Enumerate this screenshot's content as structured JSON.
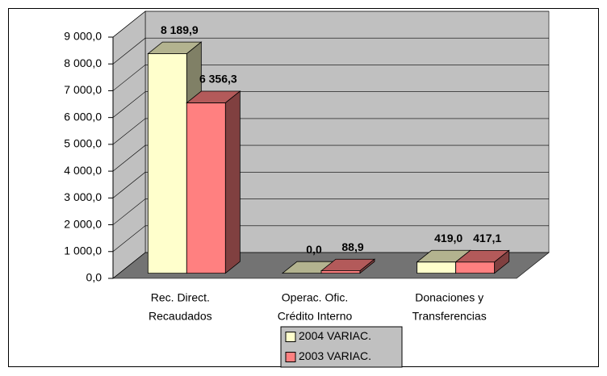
{
  "chart_data": {
    "type": "bar3d",
    "categories": [
      [
        "Rec. Direct.",
        "Recaudados"
      ],
      [
        "Operac. Ofic.",
        "Crédito Interno"
      ],
      [
        "Donaciones y",
        "Transferencias"
      ]
    ],
    "series": [
      {
        "name": "2004 VARIAC.",
        "color": "#ffffcc",
        "values": [
          8189.9,
          0.0,
          419.0
        ],
        "value_labels": [
          "8 189,9",
          "0,0",
          "419,0"
        ]
      },
      {
        "name": "2003 VARIAC.",
        "color": "#ff8080",
        "values": [
          6356.3,
          88.9,
          417.1
        ],
        "value_labels": [
          "6 356,3",
          "88,9",
          "417,1"
        ]
      }
    ],
    "ylim": [
      0,
      9000
    ],
    "yticks": [
      {
        "value": 0,
        "label": "0,0"
      },
      {
        "value": 1000,
        "label": "1 000,0"
      },
      {
        "value": 2000,
        "label": "2 000,0"
      },
      {
        "value": 3000,
        "label": "3 000,0"
      },
      {
        "value": 4000,
        "label": "4 000,0"
      },
      {
        "value": 5000,
        "label": "5 000,0"
      },
      {
        "value": 6000,
        "label": "6 000,0"
      },
      {
        "value": 7000,
        "label": "7 000,0"
      },
      {
        "value": 8000,
        "label": "8 000,0"
      },
      {
        "value": 9000,
        "label": "9 000,0"
      }
    ],
    "grid": true,
    "legend": "bottom",
    "wall_color": "#c0c0c0"
  }
}
